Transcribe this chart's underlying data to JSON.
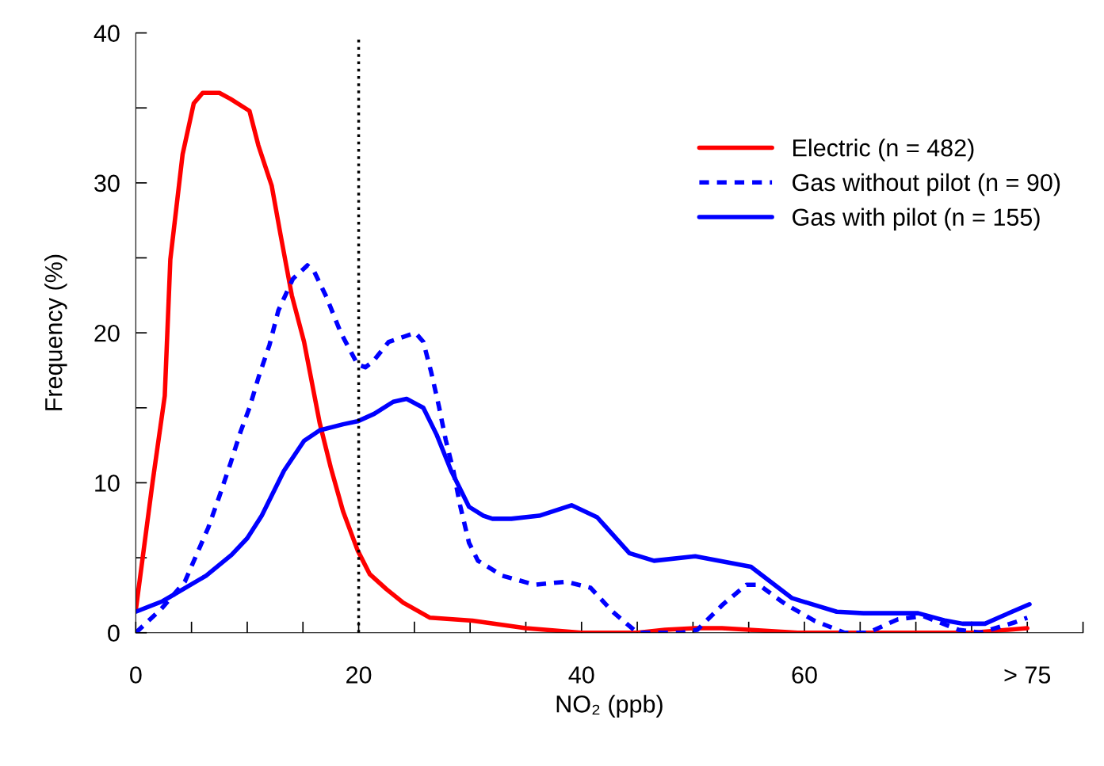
{
  "chart_data": {
    "type": "line",
    "xlabel": "NO₂ (ppb)",
    "ylabel": "Frequency (%)",
    "xlim": [
      0,
      85
    ],
    "ylim": [
      0,
      40
    ],
    "xticks": [
      0,
      {
        "value": 5,
        "label": null
      },
      {
        "value": 10,
        "label": null
      },
      {
        "value": 15,
        "label": null
      },
      20,
      {
        "value": 25,
        "label": null
      },
      {
        "value": 30,
        "label": null
      },
      {
        "value": 35,
        "label": null
      },
      40,
      {
        "value": 45,
        "label": null
      },
      {
        "value": 50,
        "label": null
      },
      {
        "value": 55,
        "label": null
      },
      60,
      {
        "value": 65,
        "label": null
      },
      {
        "value": 70,
        "label": null
      },
      {
        "value": 75,
        "label": null
      },
      {
        "value": 80,
        "label": "> 75"
      },
      {
        "value": 85,
        "label": null
      }
    ],
    "yticks": [
      0,
      {
        "value": 5,
        "label": null
      },
      10,
      {
        "value": 15,
        "label": null
      },
      20,
      {
        "value": 25,
        "label": null
      },
      30,
      {
        "value": 35,
        "label": null
      },
      40
    ],
    "grid": false,
    "legend": "top right",
    "marker": "none",
    "ref_lines": [
      {
        "axis": "x",
        "value": 20,
        "color": "#000000",
        "line_style": "dotted"
      }
    ],
    "series": [
      {
        "name": "Electric (n = 482)",
        "color": "#ff0000",
        "line_style": "solid",
        "x": [
          0,
          1.5,
          2.6,
          3.1,
          4.2,
          5.2,
          6,
          7.5,
          8.5,
          10.2,
          11,
          12.2,
          13,
          14,
          15.1,
          16.5,
          17.5,
          18.6,
          19.9,
          21,
          22.5,
          24,
          26.4,
          30.2,
          35,
          40,
          45,
          47.5,
          50.2,
          52.6,
          55,
          59.4,
          65,
          70,
          75,
          80
        ],
        "values": [
          1.5,
          10,
          15.8,
          24.9,
          31.9,
          35.3,
          36,
          36,
          35.6,
          34.8,
          32.5,
          29.8,
          26.5,
          22.5,
          19.4,
          14,
          11,
          8.1,
          5.5,
          3.9,
          2.9,
          2,
          1.0,
          0.8,
          0.3,
          0,
          0,
          0.2,
          0.3,
          0.3,
          0.2,
          0,
          0,
          0,
          0,
          0.3
        ]
      },
      {
        "name": "Gas without pilot (n = 90)",
        "color": "#0000ff",
        "line_style": "dashed",
        "x": [
          0,
          2.3,
          4.4,
          6.5,
          7.5,
          8.5,
          9.4,
          10.2,
          11,
          12,
          12.8,
          14.1,
          15.4,
          16,
          17.1,
          18.4,
          19.9,
          20.6,
          21.3,
          22.7,
          25.1,
          25.8,
          26.5,
          27.2,
          27.8,
          28.5,
          29.1,
          29.9,
          30.7,
          32.9,
          35.8,
          38.6,
          40.8,
          42.8,
          45,
          49,
          50.4,
          52.7,
          54.8,
          55.9,
          58.3,
          60.9,
          63.6,
          65.7,
          68.4,
          70.7,
          73.8,
          75.8,
          78.9,
          80
        ],
        "values": [
          0,
          1.6,
          3.4,
          7,
          9.1,
          11.3,
          13.4,
          15,
          17,
          19.2,
          21.5,
          23.6,
          24.5,
          24.1,
          22.4,
          20,
          17.9,
          17.7,
          18.1,
          19.4,
          20,
          19.4,
          17.4,
          15.1,
          12.9,
          10.8,
          8.5,
          6,
          4.8,
          3.8,
          3.2,
          3.4,
          3.0,
          1.4,
          0,
          0,
          0.2,
          1.9,
          3.2,
          3.2,
          1.9,
          0.8,
          0,
          0,
          0.9,
          1.1,
          0.2,
          0,
          0.7,
          1.0
        ]
      },
      {
        "name": "Gas with pilot (n = 155)",
        "color": "#0000ff",
        "line_style": "solid",
        "x": [
          0,
          2.4,
          6.3,
          8.6,
          10,
          11.3,
          13.3,
          15.1,
          16.5,
          18.6,
          19.9,
          21.4,
          23.1,
          24.3,
          25.8,
          27,
          28.3,
          29.9,
          31.2,
          32,
          33.7,
          36.2,
          39.1,
          41.4,
          44.3,
          46.5,
          50.2,
          55.2,
          58.9,
          62.9,
          65.3,
          70.2,
          72.7,
          74.2,
          76.2,
          77.7,
          80.2
        ],
        "values": [
          1.4,
          2.1,
          3.8,
          5.2,
          6.3,
          7.8,
          10.8,
          12.8,
          13.5,
          13.9,
          14.1,
          14.6,
          15.4,
          15.6,
          15,
          13.2,
          10.8,
          8.4,
          7.8,
          7.6,
          7.6,
          7.8,
          8.5,
          7.7,
          5.3,
          4.8,
          5.1,
          4.4,
          2.3,
          1.4,
          1.3,
          1.3,
          0.8,
          0.6,
          0.6,
          1.1,
          1.9
        ]
      }
    ]
  }
}
